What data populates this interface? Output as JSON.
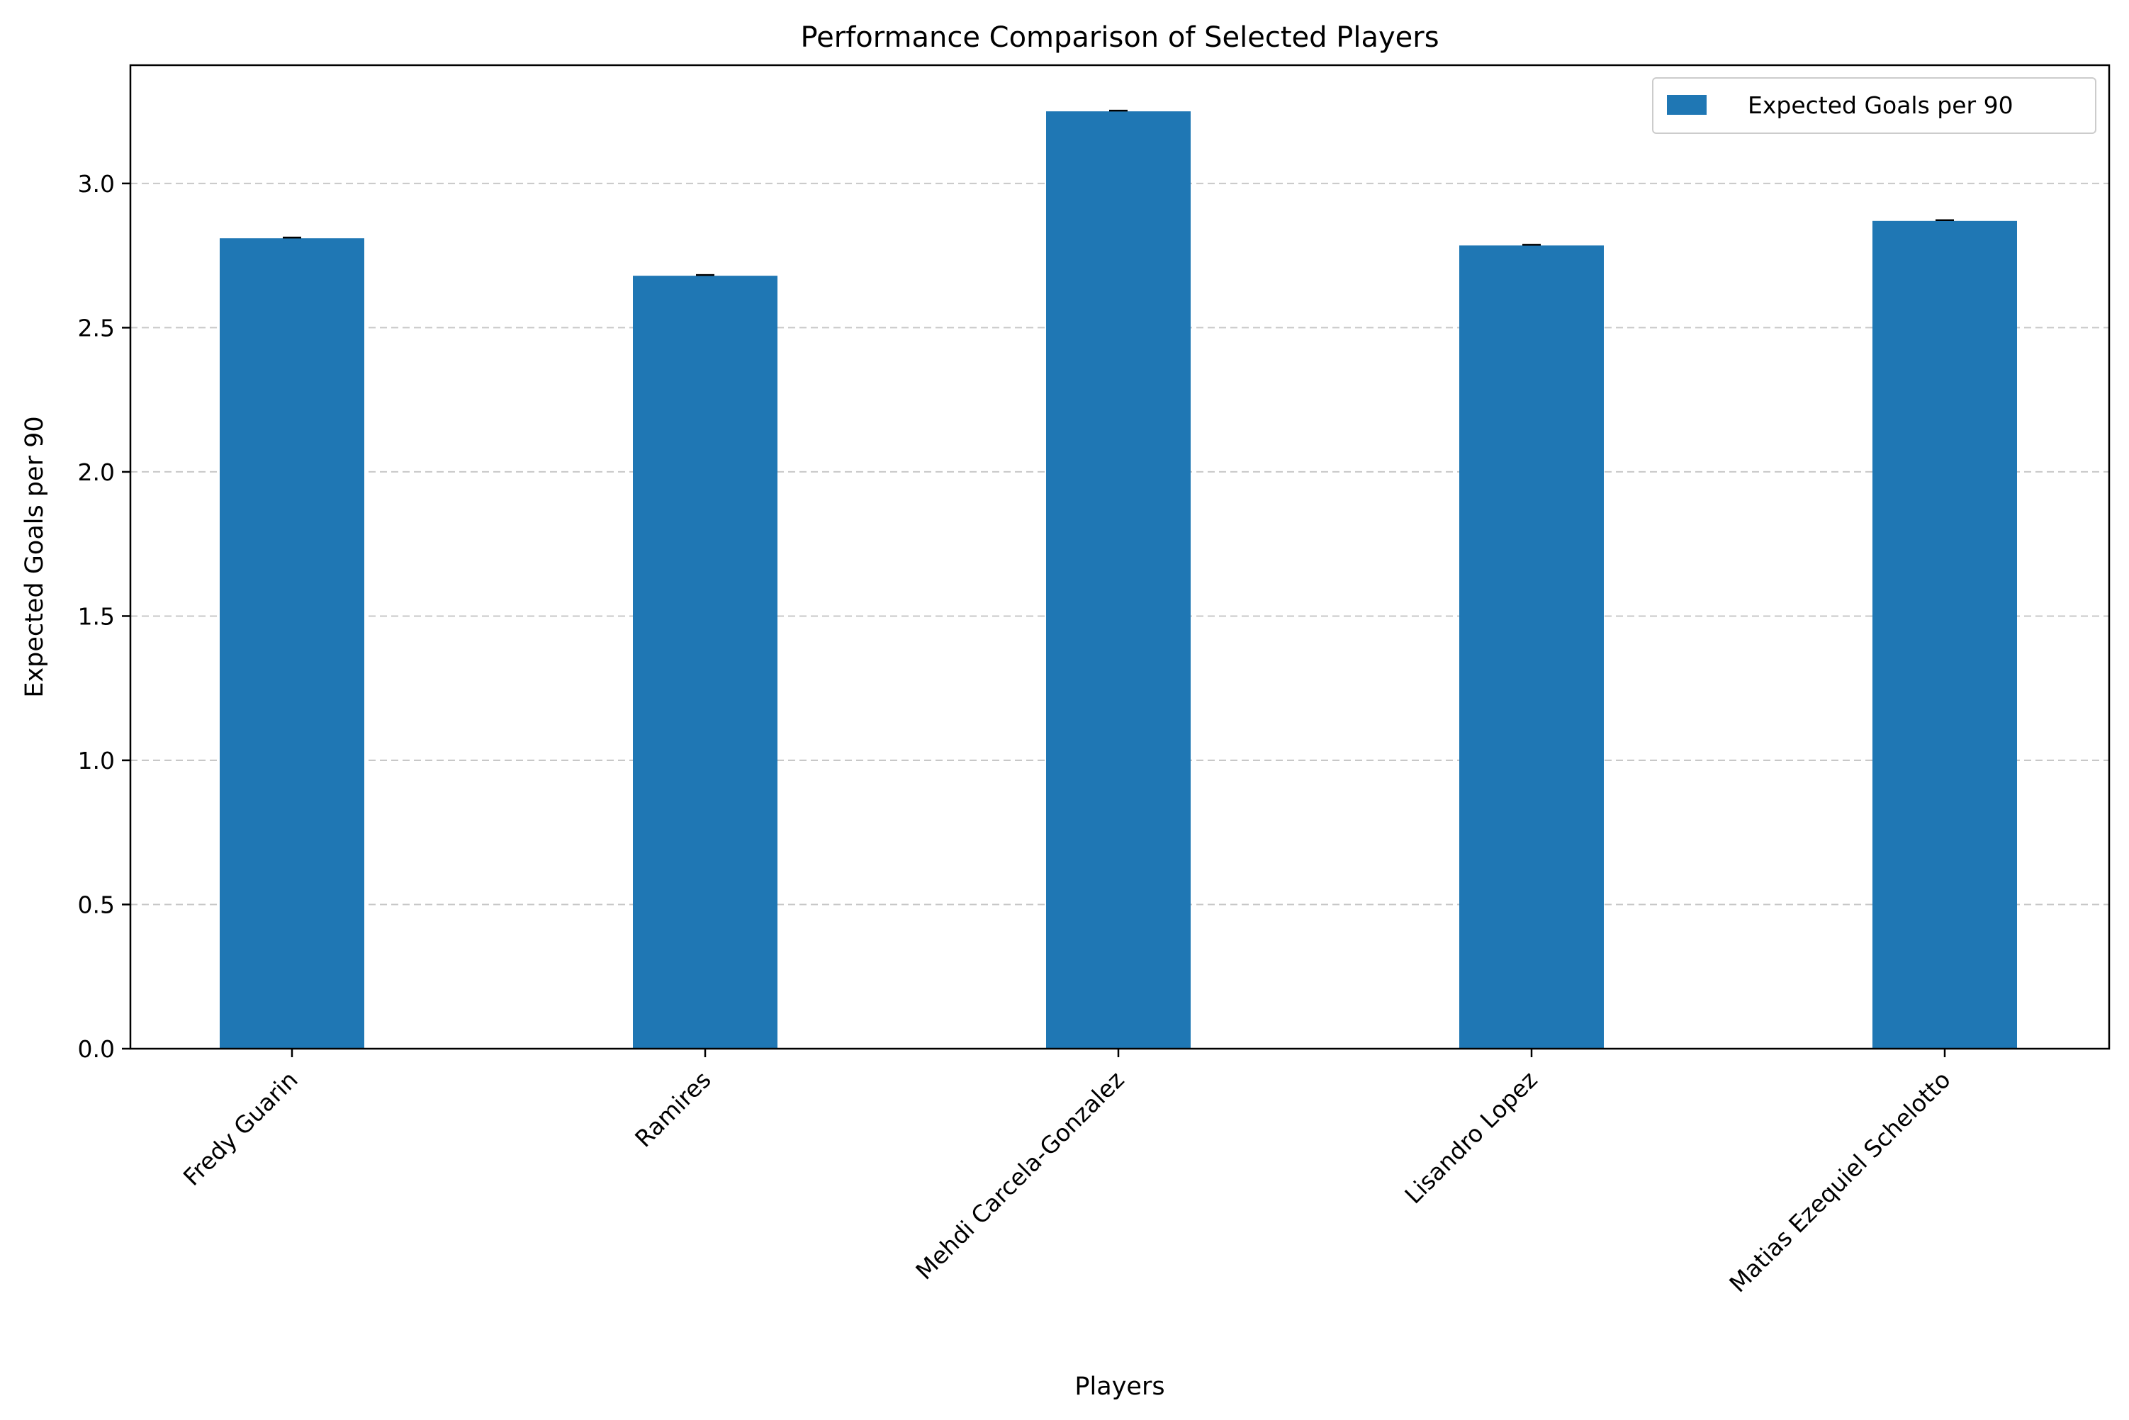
{
  "chart_data": {
    "type": "bar",
    "title": "Performance Comparison of Selected Players",
    "xlabel": "Players",
    "ylabel": "Expected Goals per 90",
    "categories": [
      "Fredy Guarin",
      "Ramires",
      "Mehdi Carcela-Gonzalez",
      "Lisandro Lopez",
      "Matias Ezequiel Schelotto"
    ],
    "series": [
      {
        "name": "Expected Goals per 90",
        "values": [
          2.81,
          2.68,
          3.25,
          2.785,
          2.87
        ]
      }
    ],
    "ylim": [
      0,
      3.41
    ],
    "yticks": [
      "0.0",
      "0.5",
      "1.0",
      "1.5",
      "2.0",
      "2.5",
      "3.0"
    ],
    "grid": "y-dashed",
    "legend_position": "top-right",
    "bar_color": "#1f77b4",
    "error_bars": true
  }
}
